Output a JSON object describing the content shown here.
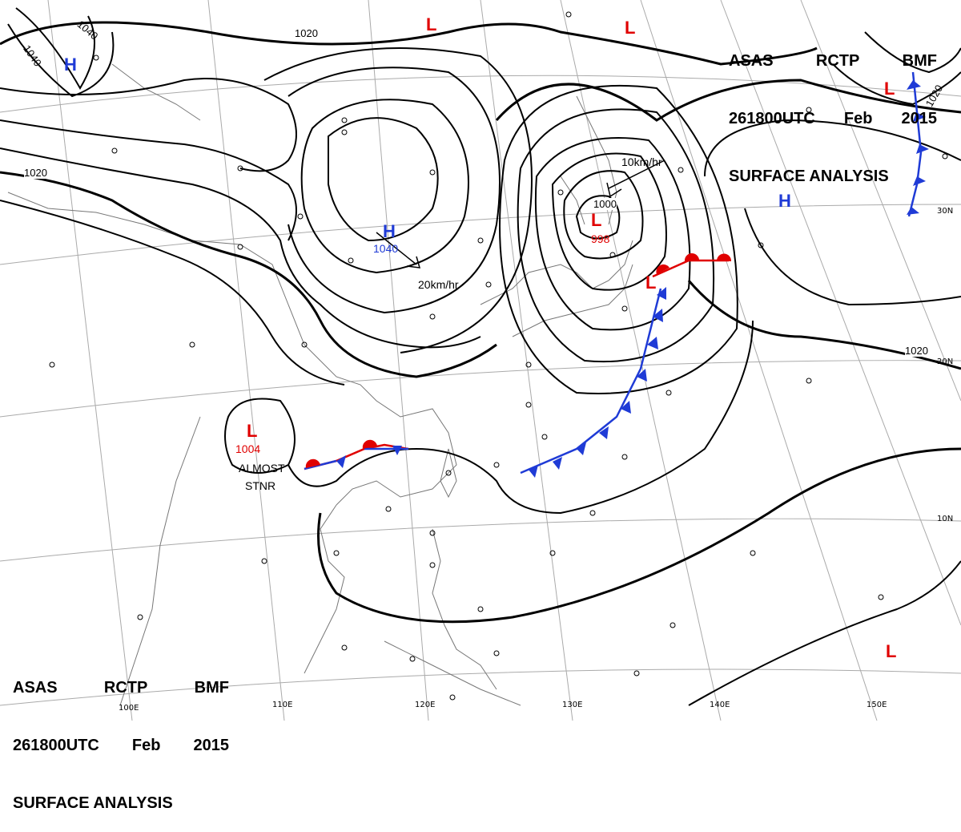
{
  "header": {
    "agency": "ASAS",
    "station": "RCTP",
    "office": "BMF",
    "datetime": "261800UTC",
    "month": "Feb",
    "year": "2015",
    "product": "SURFACE ANALYSIS"
  },
  "systems": {
    "highs": [
      {
        "label": "H",
        "pressure": ""
      },
      {
        "label": "H",
        "pressure": "1040"
      },
      {
        "label": "H",
        "pressure": ""
      }
    ],
    "lows": [
      {
        "label": "L",
        "pressure": ""
      },
      {
        "label": "L",
        "pressure": "998"
      },
      {
        "label": "L",
        "pressure": ""
      },
      {
        "label": "L",
        "pressure": "1004"
      },
      {
        "label": "L",
        "pressure": ""
      },
      {
        "label": "L",
        "pressure": ""
      },
      {
        "label": "L",
        "pressure": ""
      }
    ]
  },
  "isobars": {
    "labels": [
      "1040",
      "1040",
      "1020",
      "1020",
      "1020",
      "1020",
      "1000"
    ]
  },
  "annotations": {
    "motion_high": "20km/hr",
    "motion_low": "10km/hr",
    "stationary_line1": "ALMOST",
    "stationary_line2": "STNR"
  },
  "graticule": {
    "longitudes": [
      "100E",
      "110E",
      "120E",
      "130E",
      "140E",
      "150E"
    ],
    "latitudes": [
      "30N",
      "20N",
      "10N"
    ]
  },
  "colors": {
    "high": "#1f3bd6",
    "low": "#e00000",
    "cold_front": "#1f3bd6",
    "warm_front": "#e00000",
    "isobar": "#000000",
    "graticule": "#999999",
    "coast": "#777777"
  }
}
